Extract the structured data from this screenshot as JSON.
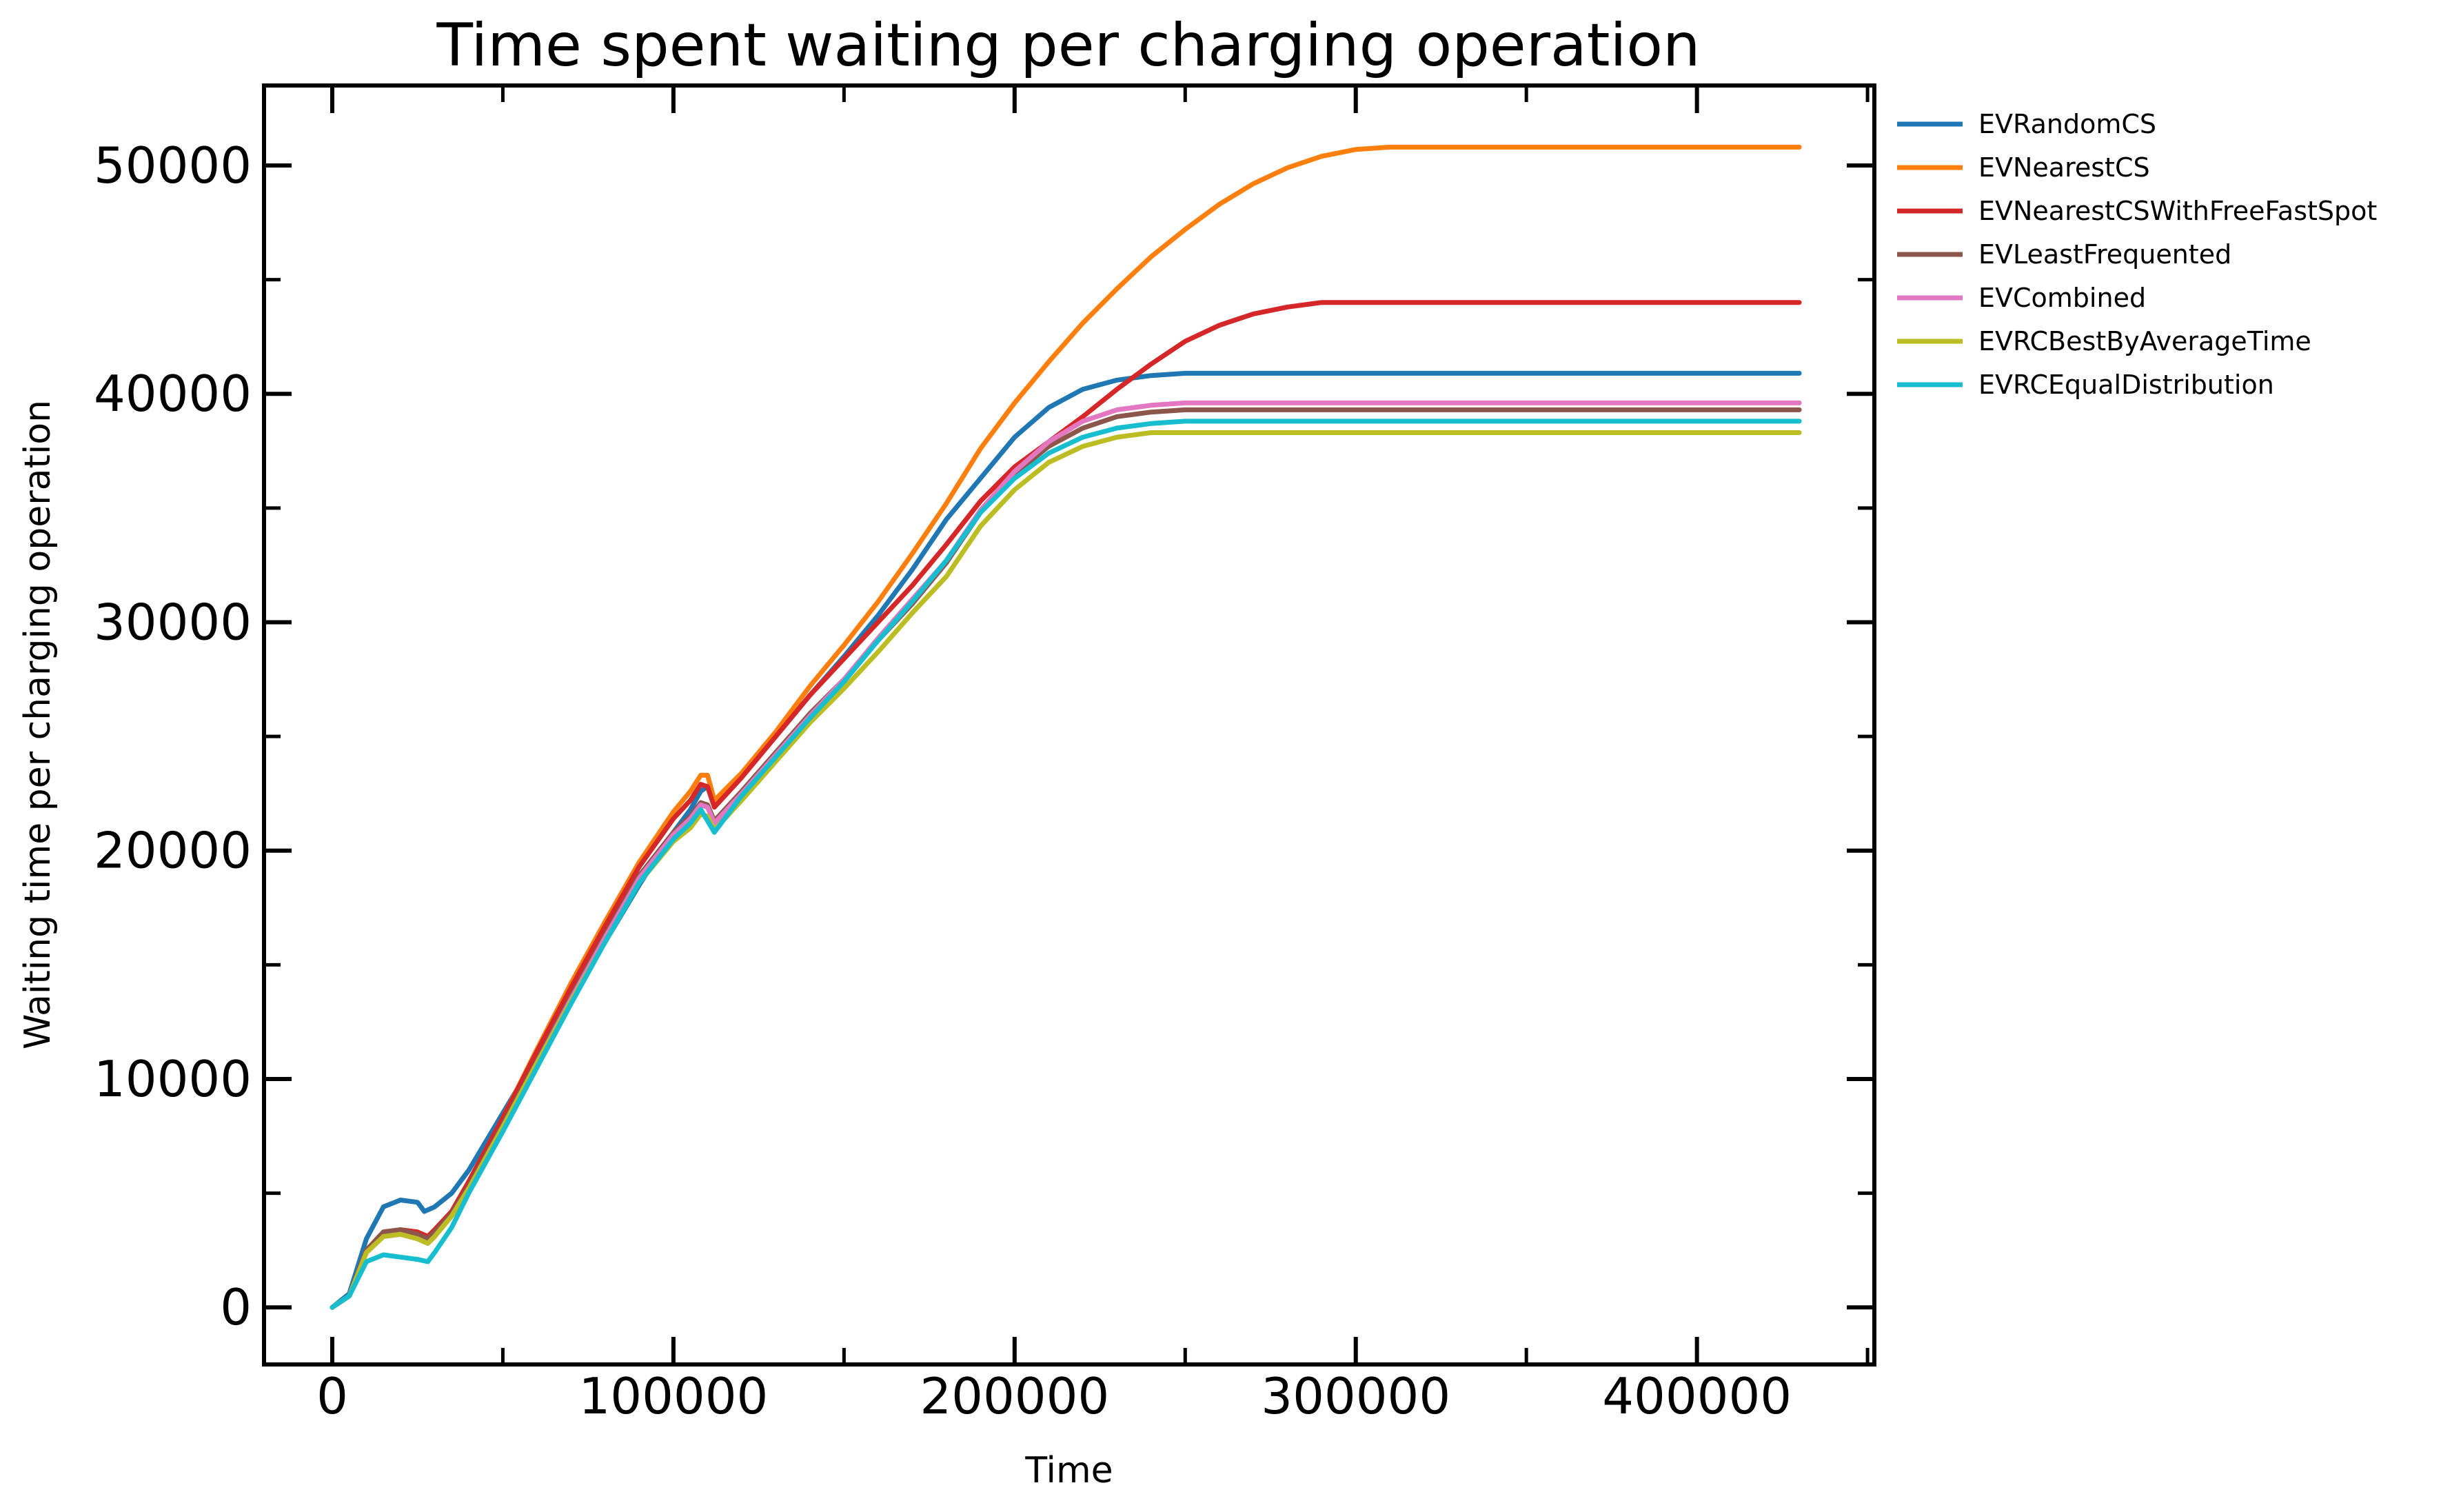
{
  "chart_data": {
    "type": "line",
    "title": "Time spent waiting per charging operation",
    "xlabel": "Time",
    "ylabel": "Waiting time per charging operation",
    "xlim": [
      -20000,
      452000
    ],
    "ylim": [
      -2500,
      53500
    ],
    "xticks": [
      0,
      100000,
      200000,
      300000,
      400000
    ],
    "xtick_labels": [
      "0",
      "100000",
      "200000",
      "300000",
      "400000"
    ],
    "yticks": [
      0,
      10000,
      20000,
      30000,
      40000,
      50000
    ],
    "ytick_labels": [
      "0",
      "10000",
      "20000",
      "30000",
      "40000",
      "50000"
    ],
    "grid": false,
    "legend_position": "outside-right-top",
    "series": [
      {
        "name": "EVRandomCS",
        "color": "#1f77b4",
        "x": [
          0,
          5000,
          10000,
          15000,
          20000,
          25000,
          27000,
          30000,
          35000,
          40000,
          50000,
          60000,
          70000,
          80000,
          90000,
          100000,
          105000,
          108000,
          110000,
          112000,
          120000,
          130000,
          140000,
          150000,
          160000,
          170000,
          180000,
          190000,
          200000,
          210000,
          220000,
          230000,
          240000,
          250000,
          260000,
          280000,
          300000,
          350000,
          400000,
          430000
        ],
        "y": [
          0,
          600,
          3000,
          4400,
          4700,
          4600,
          4200,
          4400,
          5000,
          6000,
          8500,
          11000,
          13500,
          16000,
          18500,
          20800,
          21800,
          22600,
          22800,
          22000,
          23300,
          25000,
          26800,
          28500,
          30300,
          32300,
          34500,
          36300,
          38100,
          39400,
          40200,
          40600,
          40800,
          40900,
          40900,
          40900,
          40900,
          40900,
          40900,
          40900
        ]
      },
      {
        "name": "EVNearestCS",
        "color": "#ff7f0e",
        "x": [
          0,
          5000,
          10000,
          15000,
          20000,
          25000,
          28000,
          30000,
          35000,
          40000,
          50000,
          60000,
          70000,
          80000,
          90000,
          100000,
          105000,
          108000,
          110000,
          112000,
          120000,
          130000,
          140000,
          150000,
          160000,
          170000,
          180000,
          190000,
          200000,
          210000,
          220000,
          230000,
          240000,
          250000,
          260000,
          270000,
          280000,
          290000,
          300000,
          310000,
          320000,
          330000,
          340000,
          350000,
          400000,
          430000
        ],
        "y": [
          0,
          500,
          2500,
          3300,
          3400,
          3300,
          3100,
          3400,
          4200,
          5500,
          8300,
          11300,
          14200,
          16900,
          19500,
          21700,
          22600,
          23300,
          23300,
          22200,
          23400,
          25200,
          27200,
          29000,
          30900,
          33000,
          35200,
          37600,
          39600,
          41400,
          43100,
          44600,
          46000,
          47200,
          48300,
          49200,
          49900,
          50400,
          50700,
          50800,
          50800,
          50800,
          50800,
          50800,
          50800,
          50800
        ]
      },
      {
        "name": "EVNearestCSWithFreeFastSpot",
        "color": "#d62728",
        "x": [
          0,
          5000,
          10000,
          15000,
          20000,
          25000,
          28000,
          30000,
          35000,
          40000,
          50000,
          60000,
          70000,
          80000,
          90000,
          100000,
          105000,
          108000,
          110000,
          112000,
          120000,
          130000,
          140000,
          150000,
          160000,
          170000,
          180000,
          190000,
          200000,
          210000,
          220000,
          230000,
          240000,
          250000,
          260000,
          270000,
          280000,
          290000,
          300000,
          310000,
          320000,
          350000,
          400000,
          430000
        ],
        "y": [
          0,
          500,
          2500,
          3300,
          3400,
          3300,
          3100,
          3400,
          4200,
          5500,
          8300,
          11200,
          14000,
          16700,
          19300,
          21400,
          22200,
          22900,
          22800,
          21900,
          23200,
          25000,
          26800,
          28400,
          30000,
          31600,
          33400,
          35300,
          36800,
          37900,
          39000,
          40200,
          41300,
          42300,
          43000,
          43500,
          43800,
          44000,
          44000,
          44000,
          44000,
          44000,
          44000,
          44000
        ]
      },
      {
        "name": "EVLeastFrequented",
        "color": "#8c564b",
        "x": [
          0,
          5000,
          10000,
          15000,
          20000,
          25000,
          28000,
          30000,
          35000,
          40000,
          50000,
          60000,
          70000,
          80000,
          90000,
          100000,
          105000,
          108000,
          110000,
          112000,
          120000,
          130000,
          140000,
          150000,
          160000,
          170000,
          180000,
          190000,
          200000,
          210000,
          220000,
          230000,
          240000,
          250000,
          260000,
          300000,
          350000,
          400000,
          430000
        ],
        "y": [
          0,
          500,
          2500,
          3300,
          3400,
          3200,
          3000,
          3300,
          4100,
          5300,
          8000,
          10800,
          13600,
          16300,
          18900,
          20800,
          21500,
          22100,
          22000,
          21300,
          22600,
          24300,
          26000,
          27500,
          29200,
          30800,
          32600,
          34800,
          36500,
          37700,
          38500,
          39000,
          39200,
          39300,
          39300,
          39300,
          39300,
          39300,
          39300
        ]
      },
      {
        "name": "EVCombined",
        "color": "#e377c2",
        "x": [
          0,
          5000,
          10000,
          15000,
          20000,
          25000,
          28000,
          30000,
          35000,
          40000,
          50000,
          60000,
          70000,
          80000,
          90000,
          100000,
          105000,
          108000,
          110000,
          112000,
          120000,
          130000,
          140000,
          150000,
          160000,
          170000,
          180000,
          190000,
          200000,
          210000,
          220000,
          230000,
          240000,
          250000,
          260000,
          300000,
          350000,
          400000,
          430000
        ],
        "y": [
          0,
          500,
          2400,
          3100,
          3200,
          3000,
          2800,
          3100,
          4000,
          5200,
          7900,
          10700,
          13500,
          16200,
          18800,
          20700,
          21400,
          22000,
          21900,
          21200,
          22500,
          24200,
          25900,
          27500,
          29300,
          31000,
          32700,
          34900,
          36600,
          37900,
          38800,
          39300,
          39500,
          39600,
          39600,
          39600,
          39600,
          39600,
          39600
        ]
      },
      {
        "name": "EVRCBestByAverageTime",
        "color": "#bcbd22",
        "x": [
          0,
          5000,
          10000,
          15000,
          20000,
          25000,
          28000,
          30000,
          35000,
          40000,
          50000,
          60000,
          70000,
          80000,
          90000,
          100000,
          105000,
          108000,
          110000,
          112000,
          120000,
          130000,
          140000,
          150000,
          160000,
          170000,
          180000,
          190000,
          200000,
          210000,
          220000,
          230000,
          240000,
          250000,
          260000,
          300000,
          350000,
          400000,
          430000
        ],
        "y": [
          0,
          500,
          2400,
          3100,
          3200,
          3000,
          2800,
          3100,
          4000,
          5200,
          7900,
          10700,
          13400,
          16000,
          18600,
          20400,
          21000,
          21600,
          21500,
          20900,
          22200,
          23900,
          25600,
          27100,
          28700,
          30400,
          32000,
          34200,
          35800,
          37000,
          37700,
          38100,
          38300,
          38300,
          38300,
          38300,
          38300,
          38300,
          38300
        ]
      },
      {
        "name": "EVRCEqualDistribution",
        "color": "#17becf",
        "x": [
          0,
          5000,
          10000,
          15000,
          20000,
          25000,
          28000,
          30000,
          35000,
          40000,
          50000,
          60000,
          70000,
          80000,
          90000,
          100000,
          105000,
          108000,
          110000,
          112000,
          120000,
          130000,
          140000,
          150000,
          160000,
          170000,
          180000,
          190000,
          200000,
          210000,
          220000,
          230000,
          240000,
          250000,
          260000,
          300000,
          350000,
          400000,
          430000
        ],
        "y": [
          0,
          500,
          2000,
          2300,
          2200,
          2100,
          2000,
          2400,
          3500,
          5000,
          7700,
          10500,
          13300,
          16000,
          18600,
          20500,
          21200,
          21800,
          21300,
          20800,
          22400,
          24100,
          25800,
          27400,
          29200,
          30900,
          32700,
          34800,
          36300,
          37400,
          38100,
          38500,
          38700,
          38800,
          38800,
          38800,
          38800,
          38800,
          38800
        ]
      }
    ]
  }
}
